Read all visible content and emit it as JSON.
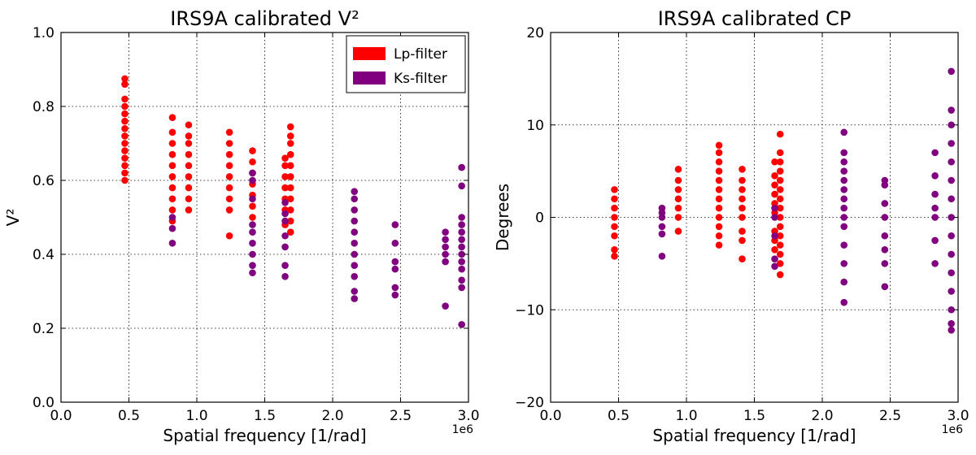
{
  "chart_data": [
    {
      "type": "scatter",
      "title": "IRS9A calibrated V²",
      "xlabel": "Spatial frequency [1/rad]",
      "ylabel": "V²",
      "x_offset_text": "1e6",
      "xlim": [
        0.0,
        3.0
      ],
      "ylim": [
        0.0,
        1.0
      ],
      "xticks": [
        "0.0",
        "0.5",
        "1.0",
        "1.5",
        "2.0",
        "2.5",
        "3.0"
      ],
      "yticks": [
        "0.0",
        "0.2",
        "0.4",
        "0.6",
        "0.8",
        "1.0"
      ],
      "grid": true,
      "legend": {
        "placement": "upper-right",
        "entries": [
          {
            "label": "Lp-filter",
            "color": "#ff0000"
          },
          {
            "label": "Ks-filter",
            "color": "#800080"
          }
        ]
      },
      "series": [
        {
          "name": "Lp-filter",
          "color": "#ff0000",
          "points": [
            [
              0.47,
              0.6
            ],
            [
              0.47,
              0.62
            ],
            [
              0.47,
              0.64
            ],
            [
              0.47,
              0.66
            ],
            [
              0.47,
              0.68
            ],
            [
              0.47,
              0.7
            ],
            [
              0.47,
              0.72
            ],
            [
              0.47,
              0.74
            ],
            [
              0.47,
              0.76
            ],
            [
              0.47,
              0.78
            ],
            [
              0.47,
              0.8
            ],
            [
              0.47,
              0.82
            ],
            [
              0.47,
              0.86
            ],
            [
              0.47,
              0.875
            ],
            [
              0.82,
              0.49
            ],
            [
              0.82,
              0.52
            ],
            [
              0.82,
              0.55
            ],
            [
              0.82,
              0.58
            ],
            [
              0.82,
              0.61
            ],
            [
              0.82,
              0.64
            ],
            [
              0.82,
              0.67
            ],
            [
              0.82,
              0.7
            ],
            [
              0.82,
              0.73
            ],
            [
              0.82,
              0.77
            ],
            [
              0.94,
              0.52
            ],
            [
              0.94,
              0.55
            ],
            [
              0.94,
              0.58
            ],
            [
              0.94,
              0.61
            ],
            [
              0.94,
              0.64
            ],
            [
              0.94,
              0.67
            ],
            [
              0.94,
              0.7
            ],
            [
              0.94,
              0.72
            ],
            [
              0.94,
              0.75
            ],
            [
              1.24,
              0.45
            ],
            [
              1.24,
              0.52
            ],
            [
              1.24,
              0.55
            ],
            [
              1.24,
              0.58
            ],
            [
              1.24,
              0.61
            ],
            [
              1.24,
              0.64
            ],
            [
              1.24,
              0.67
            ],
            [
              1.24,
              0.7
            ],
            [
              1.24,
              0.73
            ],
            [
              1.41,
              0.5
            ],
            [
              1.41,
              0.53
            ],
            [
              1.41,
              0.56
            ],
            [
              1.41,
              0.59
            ],
            [
              1.41,
              0.62
            ],
            [
              1.41,
              0.65
            ],
            [
              1.41,
              0.68
            ],
            [
              1.65,
              0.48
            ],
            [
              1.65,
              0.52
            ],
            [
              1.65,
              0.55
            ],
            [
              1.65,
              0.58
            ],
            [
              1.65,
              0.61
            ],
            [
              1.65,
              0.64
            ],
            [
              1.65,
              0.66
            ],
            [
              1.69,
              0.46
            ],
            [
              1.69,
              0.49
            ],
            [
              1.69,
              0.52
            ],
            [
              1.69,
              0.55
            ],
            [
              1.69,
              0.58
            ],
            [
              1.69,
              0.61
            ],
            [
              1.69,
              0.64
            ],
            [
              1.69,
              0.67
            ],
            [
              1.69,
              0.7
            ],
            [
              1.69,
              0.72
            ],
            [
              1.69,
              0.745
            ]
          ]
        },
        {
          "name": "Ks-filter",
          "color": "#800080",
          "points": [
            [
              0.82,
              0.43
            ],
            [
              0.82,
              0.47
            ],
            [
              0.82,
              0.5
            ],
            [
              1.41,
              0.35
            ],
            [
              1.41,
              0.37
            ],
            [
              1.41,
              0.4
            ],
            [
              1.41,
              0.43
            ],
            [
              1.41,
              0.46
            ],
            [
              1.41,
              0.48
            ],
            [
              1.41,
              0.55
            ],
            [
              1.41,
              0.6
            ],
            [
              1.41,
              0.62
            ],
            [
              1.65,
              0.34
            ],
            [
              1.65,
              0.37
            ],
            [
              1.65,
              0.42
            ],
            [
              1.65,
              0.45
            ],
            [
              1.65,
              0.49
            ],
            [
              1.65,
              0.51
            ],
            [
              1.65,
              0.54
            ],
            [
              2.16,
              0.28
            ],
            [
              2.16,
              0.3
            ],
            [
              2.16,
              0.34
            ],
            [
              2.16,
              0.37
            ],
            [
              2.16,
              0.4
            ],
            [
              2.16,
              0.43
            ],
            [
              2.16,
              0.46
            ],
            [
              2.16,
              0.49
            ],
            [
              2.16,
              0.52
            ],
            [
              2.16,
              0.55
            ],
            [
              2.16,
              0.57
            ],
            [
              2.46,
              0.29
            ],
            [
              2.46,
              0.31
            ],
            [
              2.46,
              0.36
            ],
            [
              2.46,
              0.38
            ],
            [
              2.46,
              0.43
            ],
            [
              2.46,
              0.48
            ],
            [
              2.83,
              0.26
            ],
            [
              2.83,
              0.38
            ],
            [
              2.83,
              0.4
            ],
            [
              2.83,
              0.42
            ],
            [
              2.83,
              0.44
            ],
            [
              2.83,
              0.46
            ],
            [
              2.95,
              0.21
            ],
            [
              2.95,
              0.31
            ],
            [
              2.95,
              0.33
            ],
            [
              2.95,
              0.36
            ],
            [
              2.95,
              0.38
            ],
            [
              2.95,
              0.4
            ],
            [
              2.95,
              0.42
            ],
            [
              2.95,
              0.44
            ],
            [
              2.95,
              0.46
            ],
            [
              2.95,
              0.48
            ],
            [
              2.95,
              0.5
            ],
            [
              2.95,
              0.585
            ],
            [
              2.95,
              0.635
            ]
          ]
        }
      ]
    },
    {
      "type": "scatter",
      "title": "IRS9A calibrated CP",
      "xlabel": "Spatial frequency [1/rad]",
      "ylabel": "Degrees",
      "x_offset_text": "1e6",
      "xlim": [
        0.0,
        3.0
      ],
      "ylim": [
        -20,
        20
      ],
      "xticks": [
        "0.0",
        "0.5",
        "1.0",
        "1.5",
        "2.0",
        "2.5",
        "3.0"
      ],
      "yticks": [
        "−20",
        "−10",
        "0",
        "10",
        "20"
      ],
      "grid": true,
      "series": [
        {
          "name": "Lp-filter",
          "color": "#ff0000",
          "points": [
            [
              0.47,
              -4.2
            ],
            [
              0.47,
              -3.5
            ],
            [
              0.47,
              -2.0
            ],
            [
              0.47,
              -1.0
            ],
            [
              0.47,
              0.0
            ],
            [
              0.47,
              1.0
            ],
            [
              0.47,
              2.0
            ],
            [
              0.47,
              3.0
            ],
            [
              0.94,
              -1.5
            ],
            [
              0.94,
              0.0
            ],
            [
              0.94,
              1.0
            ],
            [
              0.94,
              2.0
            ],
            [
              0.94,
              3.0
            ],
            [
              0.94,
              4.0
            ],
            [
              0.94,
              5.2
            ],
            [
              1.24,
              -3.0
            ],
            [
              1.24,
              -2.0
            ],
            [
              1.24,
              -1.0
            ],
            [
              1.24,
              0.0
            ],
            [
              1.24,
              1.0
            ],
            [
              1.24,
              2.0
            ],
            [
              1.24,
              3.0
            ],
            [
              1.24,
              4.0
            ],
            [
              1.24,
              5.0
            ],
            [
              1.24,
              6.0
            ],
            [
              1.24,
              7.0
            ],
            [
              1.24,
              7.8
            ],
            [
              1.41,
              -4.5
            ],
            [
              1.41,
              -2.5
            ],
            [
              1.41,
              -1.5
            ],
            [
              1.41,
              0.0
            ],
            [
              1.41,
              1.0
            ],
            [
              1.41,
              2.0
            ],
            [
              1.41,
              3.0
            ],
            [
              1.41,
              4.0
            ],
            [
              1.41,
              5.2
            ],
            [
              1.65,
              -3.5
            ],
            [
              1.65,
              -2.5
            ],
            [
              1.65,
              -1.5
            ],
            [
              1.65,
              0.5
            ],
            [
              1.65,
              1.5
            ],
            [
              1.65,
              2.5
            ],
            [
              1.65,
              3.5
            ],
            [
              1.65,
              4.5
            ],
            [
              1.65,
              6.0
            ],
            [
              1.69,
              -6.2
            ],
            [
              1.69,
              -5.0
            ],
            [
              1.69,
              -4.0
            ],
            [
              1.69,
              -3.0
            ],
            [
              1.69,
              -2.0
            ],
            [
              1.69,
              -1.0
            ],
            [
              1.69,
              0.0
            ],
            [
              1.69,
              1.0
            ],
            [
              1.69,
              2.0
            ],
            [
              1.69,
              3.0
            ],
            [
              1.69,
              4.0
            ],
            [
              1.69,
              5.0
            ],
            [
              1.69,
              6.0
            ],
            [
              1.69,
              7.0
            ],
            [
              1.69,
              9.0
            ]
          ]
        },
        {
          "name": "Ks-filter",
          "color": "#800080",
          "points": [
            [
              0.82,
              -4.2
            ],
            [
              0.82,
              -1.8
            ],
            [
              0.82,
              -1.0
            ],
            [
              0.82,
              0.0
            ],
            [
              0.82,
              0.5
            ],
            [
              0.82,
              1.0
            ],
            [
              1.65,
              -5.3
            ],
            [
              1.65,
              -4.5
            ],
            [
              1.65,
              -2.0
            ],
            [
              1.65,
              0.0
            ],
            [
              1.65,
              1.0
            ],
            [
              2.16,
              -9.2
            ],
            [
              2.16,
              -7.0
            ],
            [
              2.16,
              -5.0
            ],
            [
              2.16,
              -3.0
            ],
            [
              2.16,
              -1.0
            ],
            [
              2.16,
              0.0
            ],
            [
              2.16,
              1.0
            ],
            [
              2.16,
              2.0
            ],
            [
              2.16,
              3.0
            ],
            [
              2.16,
              4.0
            ],
            [
              2.16,
              5.0
            ],
            [
              2.16,
              6.0
            ],
            [
              2.16,
              7.0
            ],
            [
              2.16,
              9.2
            ],
            [
              2.46,
              -7.5
            ],
            [
              2.46,
              -5.0
            ],
            [
              2.46,
              -3.5
            ],
            [
              2.46,
              -2.0
            ],
            [
              2.46,
              0.0
            ],
            [
              2.46,
              1.5
            ],
            [
              2.46,
              3.5
            ],
            [
              2.46,
              4.0
            ],
            [
              2.83,
              -5.0
            ],
            [
              2.83,
              -2.5
            ],
            [
              2.83,
              0.0
            ],
            [
              2.83,
              1.0
            ],
            [
              2.83,
              2.5
            ],
            [
              2.83,
              4.5
            ],
            [
              2.83,
              7.0
            ],
            [
              2.95,
              -12.2
            ],
            [
              2.95,
              -11.5
            ],
            [
              2.95,
              -10.0
            ],
            [
              2.95,
              -8.0
            ],
            [
              2.95,
              -6.0
            ],
            [
              2.95,
              -4.0
            ],
            [
              2.95,
              -2.0
            ],
            [
              2.95,
              0.0
            ],
            [
              2.95,
              2.0
            ],
            [
              2.95,
              4.0
            ],
            [
              2.95,
              6.0
            ],
            [
              2.95,
              8.0
            ],
            [
              2.95,
              10.0
            ],
            [
              2.95,
              11.6
            ],
            [
              2.95,
              15.8
            ]
          ]
        }
      ]
    }
  ]
}
